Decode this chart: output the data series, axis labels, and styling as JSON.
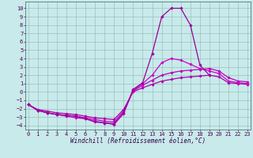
{
  "xlabel": "Windchill (Refroidissement éolien,°C)",
  "line1_x": [
    0,
    1,
    2,
    3,
    4,
    5,
    6,
    7,
    8,
    9,
    10,
    11,
    12,
    13,
    14,
    15,
    16,
    17,
    18,
    19
  ],
  "line1_y": [
    -1.5,
    -2.2,
    -2.5,
    -2.7,
    -2.8,
    -2.9,
    -3.2,
    -3.6,
    -3.7,
    -3.8,
    -2.5,
    0.3,
    1.1,
    4.6,
    9.0,
    10.0,
    10.0,
    8.0,
    3.2,
    2.0
  ],
  "line2_x": [
    0,
    1,
    2,
    3,
    4,
    5,
    6,
    7,
    8,
    9,
    10,
    11,
    12,
    13,
    14,
    15,
    16,
    17,
    18,
    19,
    20,
    21,
    22,
    23
  ],
  "line2_y": [
    -1.5,
    -2.2,
    -2.5,
    -2.7,
    -2.8,
    -2.9,
    -3.1,
    -3.3,
    -3.5,
    -3.6,
    -2.3,
    0.1,
    0.8,
    1.4,
    2.0,
    2.3,
    2.5,
    2.6,
    2.7,
    2.8,
    2.5,
    1.7,
    1.3,
    1.2
  ],
  "line3_x": [
    0,
    1,
    2,
    3,
    4,
    5,
    6,
    7,
    8,
    9,
    10,
    11,
    12,
    13,
    14,
    15,
    16,
    17,
    18,
    19,
    20,
    21,
    22,
    23
  ],
  "line3_y": [
    -1.5,
    -2.1,
    -2.3,
    -2.5,
    -2.6,
    -2.7,
    -2.9,
    -3.1,
    -3.2,
    -3.3,
    -2.1,
    0.0,
    0.5,
    0.9,
    1.3,
    1.5,
    1.7,
    1.8,
    1.9,
    2.0,
    1.8,
    1.1,
    1.0,
    0.9
  ],
  "line4_x": [
    0,
    1,
    2,
    3,
    4,
    5,
    6,
    7,
    8,
    9,
    10,
    11,
    12,
    13,
    14,
    15,
    16,
    17,
    18,
    19,
    20,
    21,
    22,
    23
  ],
  "line4_y": [
    -1.5,
    -2.2,
    -2.5,
    -2.7,
    -2.9,
    -3.1,
    -3.2,
    -3.5,
    -3.7,
    -3.9,
    -2.6,
    0.2,
    1.0,
    2.0,
    3.5,
    4.0,
    3.8,
    3.3,
    2.8,
    2.5,
    2.2,
    1.3,
    1.1,
    1.0
  ],
  "ylim": [
    -4.5,
    10.8
  ],
  "xlim": [
    -0.3,
    23.3
  ],
  "yticks": [
    10,
    9,
    8,
    7,
    6,
    5,
    4,
    3,
    2,
    1,
    0,
    -1,
    -2,
    -3,
    -4
  ],
  "xticks": [
    0,
    1,
    2,
    3,
    4,
    5,
    6,
    7,
    8,
    9,
    10,
    11,
    12,
    13,
    14,
    15,
    16,
    17,
    18,
    19,
    20,
    21,
    22,
    23
  ],
  "bg_color": "#c8eaea",
  "grid_color": "#9bbfbf",
  "line_color": "#990099",
  "marker": "D",
  "marker_size": 1.8,
  "lw": 0.9,
  "tick_fontsize": 5.0,
  "label_fontsize": 5.5
}
